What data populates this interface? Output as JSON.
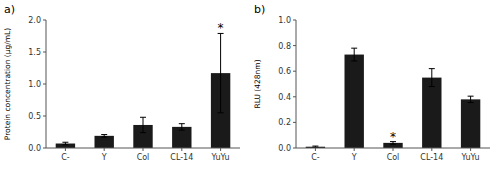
{
  "chart_data": [
    {
      "type": "bar",
      "title": "a)",
      "categories": [
        "C-",
        "Y",
        "Col",
        "CL-14",
        "YuYu"
      ],
      "values": [
        0.07,
        0.19,
        0.36,
        0.33,
        1.17
      ],
      "errors": [
        0.02,
        0.02,
        0.12,
        0.05,
        0.62
      ],
      "ylabel": "Protein concentration (μg/mL)",
      "ylim": [
        0,
        2.0
      ],
      "yticks": [
        {
          "value": 0.0,
          "label": "0.0"
        },
        0.5,
        {
          "value": 1.0,
          "label": "1.0"
        },
        1.5,
        {
          "value": 2.0,
          "label": "2.0"
        }
      ],
      "annotations": [
        {
          "text": "*",
          "category": "YuYu"
        }
      ],
      "color": "#1a1a1a",
      "grid": false
    },
    {
      "type": "bar",
      "title": "b)",
      "categories": [
        "C-",
        "Y",
        "Col",
        "CL-14",
        "YuYu"
      ],
      "values": [
        0.01,
        0.73,
        0.04,
        0.55,
        0.38
      ],
      "errors": [
        0.005,
        0.05,
        0.01,
        0.07,
        0.025
      ],
      "ylabel": "RLU (428nm)",
      "ylim": [
        0,
        1.0
      ],
      "yticks": [
        {
          "value": 0.0,
          "label": "0.0"
        },
        0.2,
        0.4,
        0.6,
        0.8,
        {
          "value": 1.0,
          "label": "1.0"
        }
      ],
      "annotations": [
        {
          "text": "*",
          "category": "Col"
        }
      ],
      "color": "#1a1a1a",
      "grid": false
    }
  ]
}
